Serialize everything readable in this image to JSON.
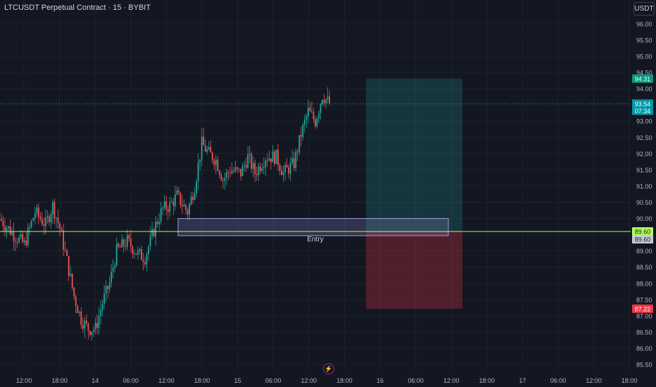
{
  "header": {
    "title": "LTCUSDT Perpetual Contract · 15 · BYBIT",
    "currency": "USDT"
  },
  "colors": {
    "background": "#131722",
    "grid": "#1e222d",
    "up": "#26a69a",
    "down": "#ef5350",
    "profit_zone": "#26a69a",
    "loss_zone": "#f23645",
    "horizontal_line": "#b2ff59",
    "box_border": "#9c9ce0"
  },
  "icons": {
    "watermark": "bolt-icon"
  },
  "chart_data": {
    "type": "candlestick",
    "title": "LTCUSDT Perpetual Contract · 15 · BYBIT",
    "interval": "15",
    "ylim": [
      85.35,
      96.3
    ],
    "y_ticks": [
      "96.00",
      "95.50",
      "95.00",
      "94.50",
      "94.00",
      "93.50",
      "93.00",
      "92.50",
      "92.00",
      "91.50",
      "91.00",
      "90.50",
      "90.00",
      "89.50",
      "89.00",
      "88.50",
      "88.00",
      "87.50",
      "87.00",
      "86.50",
      "86.00",
      "85.50"
    ],
    "x_ticks": [
      "12:00",
      "18:00",
      "14",
      "06:00",
      "12:00",
      "18:00",
      "15",
      "06:00",
      "12:00",
      "18:00",
      "16",
      "06:00",
      "12:00",
      "18:00",
      "17",
      "06:00",
      "12:00",
      "18:00"
    ],
    "grid": true,
    "candles_count": 186,
    "price_path": [
      [
        0,
        90.0
      ],
      [
        8,
        89.5
      ],
      [
        14,
        89.2
      ],
      [
        20,
        90.2
      ],
      [
        26,
        89.8
      ],
      [
        30,
        90.4
      ],
      [
        34,
        89.7
      ],
      [
        38,
        88.7
      ],
      [
        42,
        87.6
      ],
      [
        46,
        86.9
      ],
      [
        50,
        86.6
      ],
      [
        54,
        86.6
      ],
      [
        58,
        87.4
      ],
      [
        62,
        88.0
      ],
      [
        66,
        89.0
      ],
      [
        72,
        89.3
      ],
      [
        78,
        88.9
      ],
      [
        82,
        88.8
      ],
      [
        88,
        89.8
      ],
      [
        92,
        90.3
      ],
      [
        96,
        90.4
      ],
      [
        100,
        90.7
      ],
      [
        106,
        90.2
      ],
      [
        110,
        91.0
      ],
      [
        114,
        92.3
      ],
      [
        118,
        92.0
      ],
      [
        122,
        91.8
      ],
      [
        126,
        91.2
      ],
      [
        130,
        91.5
      ],
      [
        136,
        91.4
      ],
      [
        140,
        91.9
      ],
      [
        144,
        91.4
      ],
      [
        150,
        91.9
      ],
      [
        156,
        91.9
      ],
      [
        160,
        91.4
      ],
      [
        166,
        91.7
      ],
      [
        170,
        92.6
      ],
      [
        174,
        93.3
      ],
      [
        178,
        93.0
      ],
      [
        182,
        93.8
      ],
      [
        186,
        93.54
      ]
    ],
    "last_price_label": "93.54",
    "countdown_label": "07:34",
    "target_price_label": "94.31",
    "stop_price_label": "87.22",
    "hline_price_label": "89.60",
    "entry_price_label": "89.60",
    "entry_zone": {
      "label": "Entry",
      "low": 89.6,
      "high": 90.0
    },
    "position": {
      "entry": 89.6,
      "target": 94.31,
      "stop": 87.22
    },
    "hline": 89.6,
    "last_price": 93.54,
    "target_price": 94.31,
    "stop_price": 87.22
  }
}
